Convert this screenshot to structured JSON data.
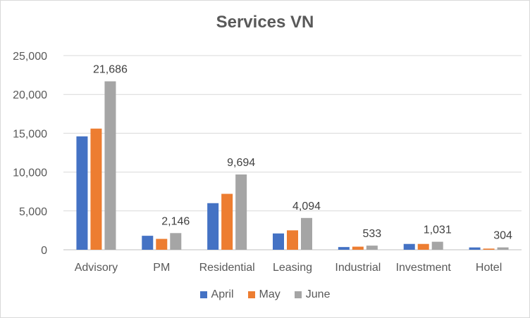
{
  "chart_data": {
    "type": "bar",
    "title": "Services VN",
    "categories": [
      "Advisory",
      "PM",
      "Residential",
      "Leasing",
      "Industrial",
      "Investment",
      "Hotel"
    ],
    "series": [
      {
        "name": "April",
        "color": "#4472c4",
        "values": [
          14600,
          1800,
          6000,
          2100,
          350,
          750,
          300
        ]
      },
      {
        "name": "May",
        "color": "#ed7d31",
        "values": [
          15600,
          1400,
          7200,
          2500,
          400,
          750,
          150
        ]
      },
      {
        "name": "June",
        "color": "#a5a5a5",
        "values": [
          21686,
          2146,
          9694,
          4094,
          533,
          1031,
          304
        ]
      }
    ],
    "data_labels": [
      "21,686",
      "2,146",
      "9,694",
      "4,094",
      "533",
      "1,031",
      "304"
    ],
    "y_ticks": [
      "0",
      "5,000",
      "10,000",
      "15,000",
      "20,000",
      "25,000"
    ],
    "ylim": [
      0,
      25000
    ],
    "grid": true,
    "legend_position": "bottom"
  }
}
